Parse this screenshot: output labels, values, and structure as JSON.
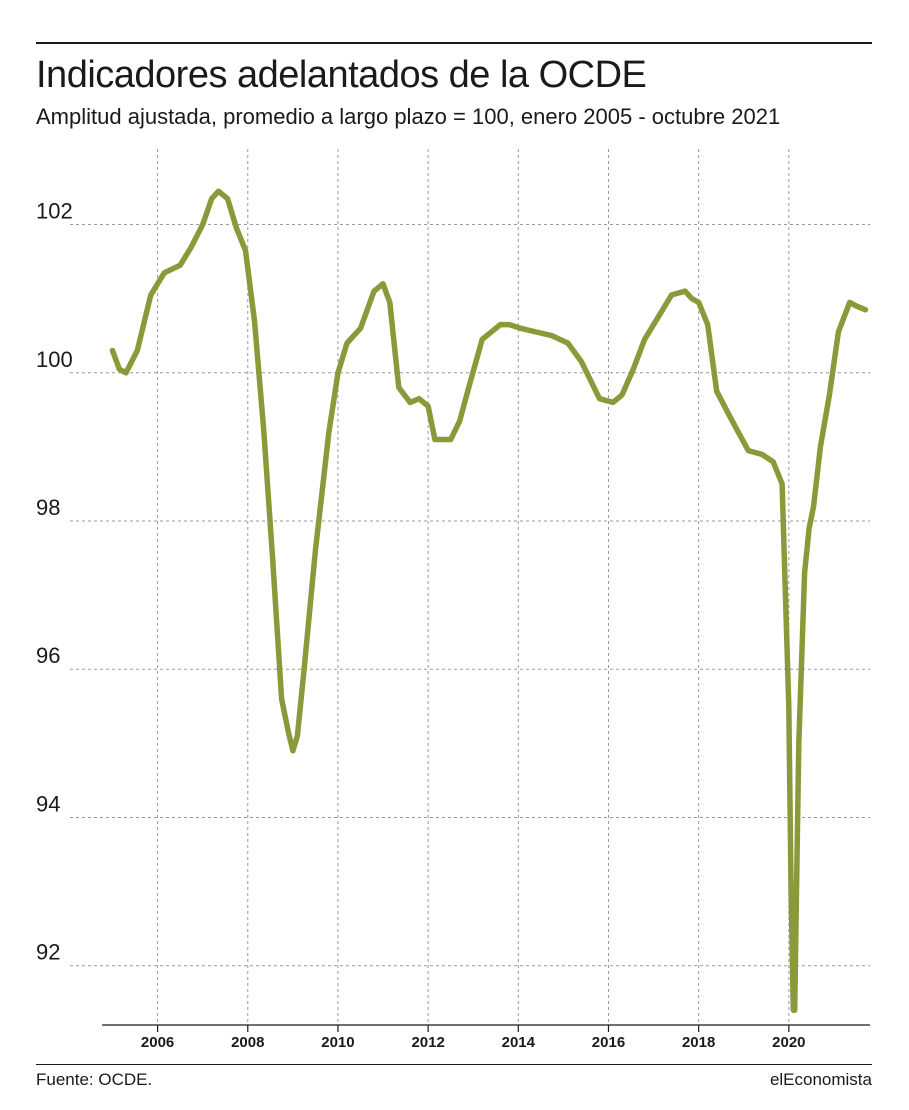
{
  "title": "Indicadores adelantados de la OCDE",
  "subtitle": "Amplitud ajustada, promedio a largo plazo = 100, enero 2005 - octubre 2021",
  "source": "Fuente: OCDE.",
  "brand": "elEconomista",
  "colors": {
    "line": "#8a9a3a",
    "grid": "#9a9a9a",
    "text": "#1a1a1a"
  },
  "chart_data": {
    "type": "line",
    "title": "Indicadores adelantados de la OCDE",
    "subtitle": "Amplitud ajustada, promedio a largo plazo = 100, enero 2005 - octubre 2021",
    "xlabel": "",
    "ylabel": "",
    "xlim": [
      2004.9,
      2021.8
    ],
    "ylim": [
      91.2,
      103.1
    ],
    "x_ticks": [
      2006,
      2008,
      2010,
      2012,
      2014,
      2016,
      2018,
      2020
    ],
    "x_tick_labels": [
      "2006",
      "2008",
      "2010",
      "2012",
      "2014",
      "2016",
      "2018",
      "2020"
    ],
    "y_ticks": [
      92,
      94,
      96,
      98,
      100,
      102
    ],
    "y_tick_labels": [
      "92",
      "94",
      "96",
      "98",
      "100",
      "102"
    ],
    "grid": true,
    "series": [
      {
        "x": [
          2005.0,
          2005.15,
          2005.3,
          2005.55,
          2005.85,
          2006.15,
          2006.5,
          2006.75,
          2007.0,
          2007.2,
          2007.35,
          2007.55,
          2007.75,
          2007.95,
          2008.15,
          2008.35,
          2008.55,
          2008.75,
          2008.9,
          2009.0,
          2009.1,
          2009.25,
          2009.5,
          2009.8,
          2010.0,
          2010.2,
          2010.5,
          2010.8,
          2011.0,
          2011.15,
          2011.35,
          2011.6,
          2011.8,
          2012.0,
          2012.15,
          2012.5,
          2012.7,
          2012.9,
          2013.2,
          2013.6,
          2013.8,
          2014.05,
          2014.4,
          2014.75,
          2015.1,
          2015.4,
          2015.8,
          2016.1,
          2016.3,
          2016.55,
          2016.8,
          2017.1,
          2017.4,
          2017.7,
          2017.85,
          2018.0,
          2018.2,
          2018.4,
          2018.7,
          2019.1,
          2019.4,
          2019.65,
          2019.85,
          2020.0,
          2020.05,
          2020.1,
          2020.13,
          2020.17,
          2020.22,
          2020.35,
          2020.45,
          2020.55,
          2020.7,
          2020.9,
          2021.1,
          2021.35,
          2021.5,
          2021.7
        ],
        "y": [
          100.3,
          100.05,
          100.0,
          100.3,
          101.05,
          101.35,
          101.45,
          101.7,
          102.0,
          102.35,
          102.45,
          102.35,
          101.95,
          101.65,
          100.7,
          99.25,
          97.5,
          95.6,
          95.15,
          94.9,
          95.1,
          96.0,
          97.6,
          99.2,
          100.0,
          100.4,
          100.6,
          101.1,
          101.2,
          100.95,
          99.8,
          99.6,
          99.65,
          99.55,
          99.1,
          99.1,
          99.35,
          99.8,
          100.45,
          100.65,
          100.65,
          100.6,
          100.55,
          100.5,
          100.4,
          100.15,
          99.65,
          99.6,
          99.7,
          100.05,
          100.45,
          100.75,
          101.05,
          101.1,
          101.0,
          100.95,
          100.65,
          99.75,
          99.4,
          98.95,
          98.9,
          98.8,
          98.5,
          95.5,
          93.0,
          91.4,
          91.4,
          93.0,
          95.0,
          97.3,
          97.9,
          98.2,
          99.0,
          99.7,
          100.55,
          100.95,
          100.9,
          100.85
        ]
      }
    ]
  }
}
